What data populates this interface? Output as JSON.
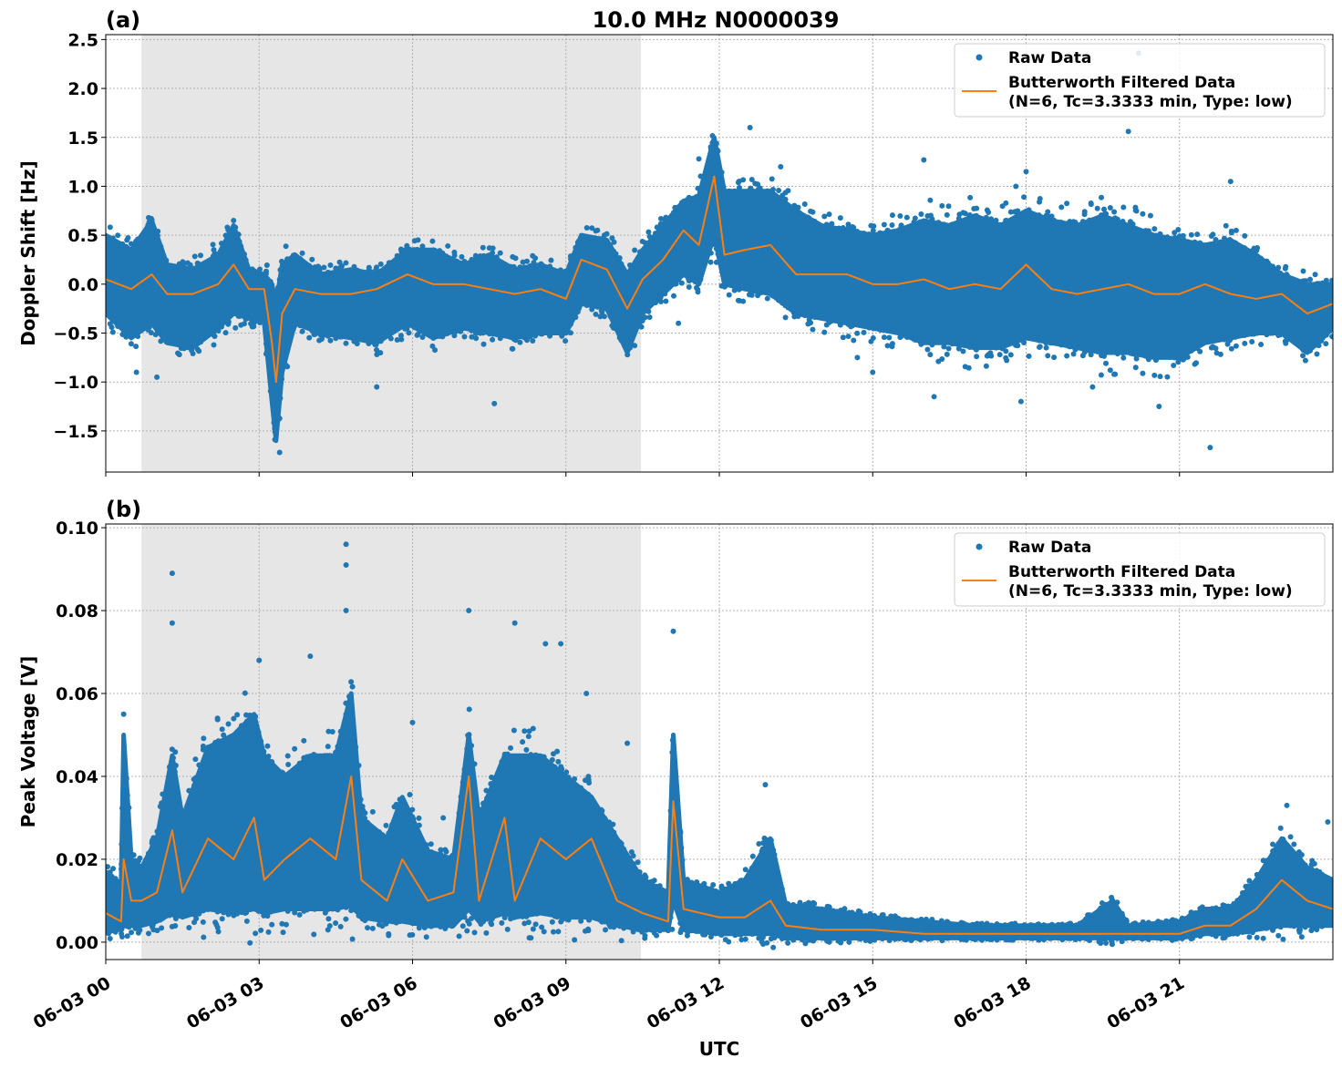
{
  "title": "10.0 MHz N0000039",
  "xlabel": "UTC",
  "x_tick_labels": [
    "06-03 00",
    "06-03 03",
    "06-03 06",
    "06-03 09",
    "06-03 12",
    "06-03 15",
    "06-03 18",
    "06-03 21"
  ],
  "colors": {
    "raw": "#1f77b4",
    "filtered": "#ff7f0e",
    "shade": "#e6e6e6"
  },
  "chart_data": [
    {
      "type": "scatter",
      "panel_label": "(a)",
      "ylabel": "Doppler Shift [Hz]",
      "xunit": "hours UTC on 06-03",
      "xlim": [
        0,
        24
      ],
      "ylim": [
        -1.92,
        2.55
      ],
      "yticks": [
        -1.5,
        -1.0,
        -0.5,
        0.0,
        0.5,
        1.0,
        1.5,
        2.0,
        2.5
      ],
      "ytick_labels": [
        "−1.5",
        "−1.0",
        "−0.5",
        "0.0",
        "0.5",
        "1.0",
        "1.5",
        "2.0",
        "2.5"
      ],
      "grid": true,
      "shaded_interval": [
        0.7,
        10.47
      ],
      "legend": {
        "placement": "top-right",
        "entries": [
          "Raw Data",
          "Butterworth Filtered Data",
          "(N=6, Tc=3.3333 min, Type: low)"
        ]
      },
      "series_columns": [
        "time_h",
        "filtered",
        "raw_low",
        "raw_high"
      ],
      "series": [
        [
          0,
          0.05,
          -0.3,
          0.5
        ],
        [
          0.5,
          -0.05,
          -0.55,
          0.35
        ],
        [
          0.9,
          0.1,
          -0.4,
          0.65
        ],
        [
          1.2,
          -0.1,
          -0.6,
          0.2
        ],
        [
          1.7,
          -0.1,
          -0.65,
          0.15
        ],
        [
          2.2,
          0.0,
          -0.45,
          0.3
        ],
        [
          2.5,
          0.2,
          -0.3,
          0.6
        ],
        [
          2.8,
          -0.05,
          -0.35,
          0.15
        ],
        [
          3.1,
          -0.05,
          -0.4,
          0.1
        ],
        [
          3.25,
          -0.6,
          -1.2,
          0.0
        ],
        [
          3.33,
          -1.0,
          -1.6,
          -0.2
        ],
        [
          3.45,
          -0.3,
          -0.9,
          0.2
        ],
        [
          3.7,
          -0.05,
          -0.4,
          0.3
        ],
        [
          4.2,
          -0.1,
          -0.5,
          0.1
        ],
        [
          4.8,
          -0.1,
          -0.55,
          0.15
        ],
        [
          5.3,
          -0.05,
          -0.6,
          0.1
        ],
        [
          5.9,
          0.1,
          -0.4,
          0.35
        ],
        [
          6.4,
          0.0,
          -0.55,
          0.35
        ],
        [
          7.0,
          0.0,
          -0.45,
          0.2
        ],
        [
          7.5,
          -0.05,
          -0.5,
          0.3
        ],
        [
          8.0,
          -0.1,
          -0.55,
          0.15
        ],
        [
          8.5,
          -0.05,
          -0.5,
          0.2
        ],
        [
          9.0,
          -0.15,
          -0.5,
          0.1
        ],
        [
          9.3,
          0.25,
          -0.2,
          0.5
        ],
        [
          9.8,
          0.15,
          -0.25,
          0.45
        ],
        [
          10.2,
          -0.25,
          -0.7,
          0.1
        ],
        [
          10.5,
          0.05,
          -0.3,
          0.35
        ],
        [
          10.9,
          0.25,
          -0.1,
          0.6
        ],
        [
          11.3,
          0.55,
          0.1,
          0.85
        ],
        [
          11.6,
          0.4,
          0.0,
          0.9
        ],
        [
          11.9,
          1.1,
          0.5,
          1.5
        ],
        [
          12.1,
          0.3,
          0.0,
          0.95
        ],
        [
          12.5,
          0.35,
          -0.05,
          0.95
        ],
        [
          13.0,
          0.4,
          -0.1,
          0.95
        ],
        [
          13.5,
          0.1,
          -0.3,
          0.75
        ],
        [
          14.0,
          0.1,
          -0.35,
          0.6
        ],
        [
          14.5,
          0.1,
          -0.4,
          0.55
        ],
        [
          15.0,
          0.0,
          -0.45,
          0.5
        ],
        [
          15.5,
          0.0,
          -0.5,
          0.55
        ],
        [
          16.0,
          0.05,
          -0.6,
          0.65
        ],
        [
          16.5,
          -0.05,
          -0.6,
          0.6
        ],
        [
          17.0,
          0.0,
          -0.65,
          0.7
        ],
        [
          17.5,
          -0.05,
          -0.65,
          0.6
        ],
        [
          18.0,
          0.2,
          -0.55,
          0.75
        ],
        [
          18.5,
          -0.05,
          -0.6,
          0.65
        ],
        [
          19.0,
          -0.1,
          -0.65,
          0.6
        ],
        [
          19.5,
          -0.05,
          -0.7,
          0.7
        ],
        [
          20.0,
          0.0,
          -0.7,
          0.6
        ],
        [
          20.5,
          -0.1,
          -0.75,
          0.5
        ],
        [
          21.0,
          -0.1,
          -0.75,
          0.45
        ],
        [
          21.5,
          0.0,
          -0.6,
          0.4
        ],
        [
          22.0,
          -0.1,
          -0.55,
          0.45
        ],
        [
          22.5,
          -0.15,
          -0.5,
          0.3
        ],
        [
          23.0,
          -0.1,
          -0.5,
          0.1
        ],
        [
          23.5,
          -0.3,
          -0.7,
          0.0
        ],
        [
          24.0,
          -0.2,
          -0.45,
          0.0
        ]
      ],
      "raw_outliers": [
        [
          0.6,
          -0.9
        ],
        [
          1.0,
          -0.95
        ],
        [
          2.5,
          0.65
        ],
        [
          3.4,
          -1.72
        ],
        [
          5.3,
          -1.05
        ],
        [
          7.6,
          -1.22
        ],
        [
          11.2,
          -0.4
        ],
        [
          11.6,
          1.28
        ],
        [
          12.6,
          1.6
        ],
        [
          13.2,
          1.2
        ],
        [
          16.0,
          1.27
        ],
        [
          17.8,
          1.0
        ],
        [
          17.9,
          -1.2
        ],
        [
          18.0,
          1.15
        ],
        [
          20.0,
          1.56
        ],
        [
          20.2,
          2.36
        ],
        [
          20.6,
          -1.25
        ],
        [
          21.6,
          -1.67
        ],
        [
          22.0,
          1.05
        ],
        [
          15.0,
          -0.9
        ],
        [
          14.7,
          -0.75
        ],
        [
          16.2,
          -1.15
        ],
        [
          19.3,
          -1.05
        ]
      ]
    },
    {
      "type": "scatter",
      "panel_label": "(b)",
      "ylabel": "Peak Voltage [V]",
      "xunit": "hours UTC on 06-03",
      "xlim": [
        0,
        24
      ],
      "ylim": [
        -0.0042,
        0.1009
      ],
      "yticks": [
        0.0,
        0.02,
        0.04,
        0.06,
        0.08,
        0.1
      ],
      "ytick_labels": [
        "0.00",
        "0.02",
        "0.04",
        "0.06",
        "0.08",
        "0.10"
      ],
      "grid": true,
      "shaded_interval": [
        0.7,
        10.47
      ],
      "legend": {
        "placement": "top-right",
        "entries": [
          "Raw Data",
          "Butterworth Filtered Data",
          "(N=6, Tc=3.3333 min, Type: low)"
        ]
      },
      "series_columns": [
        "time_h",
        "filtered",
        "raw_low",
        "raw_high"
      ],
      "series": [
        [
          0,
          0.007,
          0.003,
          0.017
        ],
        [
          0.3,
          0.005,
          0.003,
          0.014
        ],
        [
          0.35,
          0.02,
          0.004,
          0.05
        ],
        [
          0.5,
          0.01,
          0.004,
          0.02
        ],
        [
          0.7,
          0.01,
          0.004,
          0.018
        ],
        [
          1.0,
          0.012,
          0.005,
          0.025
        ],
        [
          1.3,
          0.027,
          0.007,
          0.045
        ],
        [
          1.5,
          0.012,
          0.006,
          0.03
        ],
        [
          2.0,
          0.025,
          0.008,
          0.047
        ],
        [
          2.5,
          0.02,
          0.007,
          0.05
        ],
        [
          2.9,
          0.03,
          0.008,
          0.055
        ],
        [
          3.1,
          0.015,
          0.007,
          0.045
        ],
        [
          3.5,
          0.02,
          0.008,
          0.04
        ],
        [
          4.0,
          0.025,
          0.008,
          0.045
        ],
        [
          4.5,
          0.02,
          0.008,
          0.045
        ],
        [
          4.8,
          0.04,
          0.009,
          0.06
        ],
        [
          5.0,
          0.015,
          0.006,
          0.03
        ],
        [
          5.5,
          0.01,
          0.005,
          0.025
        ],
        [
          5.8,
          0.02,
          0.005,
          0.035
        ],
        [
          6.3,
          0.01,
          0.004,
          0.022
        ],
        [
          6.8,
          0.012,
          0.004,
          0.02
        ],
        [
          7.1,
          0.04,
          0.008,
          0.05
        ],
        [
          7.3,
          0.01,
          0.005,
          0.03
        ],
        [
          7.8,
          0.03,
          0.007,
          0.045
        ],
        [
          8.0,
          0.01,
          0.006,
          0.045
        ],
        [
          8.5,
          0.025,
          0.007,
          0.045
        ],
        [
          9.0,
          0.02,
          0.006,
          0.04
        ],
        [
          9.5,
          0.025,
          0.006,
          0.035
        ],
        [
          10.0,
          0.01,
          0.004,
          0.025
        ],
        [
          10.5,
          0.007,
          0.003,
          0.015
        ],
        [
          11.0,
          0.005,
          0.003,
          0.012
        ],
        [
          11.1,
          0.034,
          0.01,
          0.05
        ],
        [
          11.3,
          0.008,
          0.003,
          0.015
        ],
        [
          12.0,
          0.006,
          0.002,
          0.012
        ],
        [
          12.5,
          0.006,
          0.002,
          0.015
        ],
        [
          13.0,
          0.01,
          0.002,
          0.025
        ],
        [
          13.3,
          0.004,
          0.001,
          0.009
        ],
        [
          14.0,
          0.003,
          0.001,
          0.008
        ],
        [
          15.0,
          0.003,
          0.001,
          0.006
        ],
        [
          16.0,
          0.002,
          0.001,
          0.005
        ],
        [
          17.0,
          0.002,
          0.001,
          0.004
        ],
        [
          18.0,
          0.002,
          0.001,
          0.004
        ],
        [
          19.0,
          0.002,
          0.001,
          0.004
        ],
        [
          19.7,
          0.002,
          0.001,
          0.01
        ],
        [
          20.0,
          0.002,
          0.001,
          0.004
        ],
        [
          21.0,
          0.002,
          0.001,
          0.005
        ],
        [
          21.5,
          0.004,
          0.002,
          0.008
        ],
        [
          22.0,
          0.004,
          0.002,
          0.008
        ],
        [
          22.5,
          0.008,
          0.003,
          0.015
        ],
        [
          23.0,
          0.015,
          0.004,
          0.025
        ],
        [
          23.5,
          0.01,
          0.004,
          0.018
        ],
        [
          24.0,
          0.008,
          0.004,
          0.015
        ]
      ],
      "raw_outliers": [
        [
          1.3,
          0.089
        ],
        [
          1.3,
          0.077
        ],
        [
          4.7,
          0.096
        ],
        [
          4.7,
          0.091
        ],
        [
          4.7,
          0.08
        ],
        [
          3.0,
          0.068
        ],
        [
          4.0,
          0.069
        ],
        [
          7.1,
          0.08
        ],
        [
          8.0,
          0.077
        ],
        [
          8.6,
          0.072
        ],
        [
          8.9,
          0.072
        ],
        [
          9.4,
          0.06
        ],
        [
          11.1,
          0.075
        ],
        [
          0.35,
          0.055
        ],
        [
          12.9,
          0.038
        ],
        [
          10.2,
          0.048
        ],
        [
          23.1,
          0.033
        ],
        [
          23.9,
          0.029
        ],
        [
          6.0,
          0.053
        ],
        [
          6.6,
          0.03
        ]
      ]
    }
  ]
}
